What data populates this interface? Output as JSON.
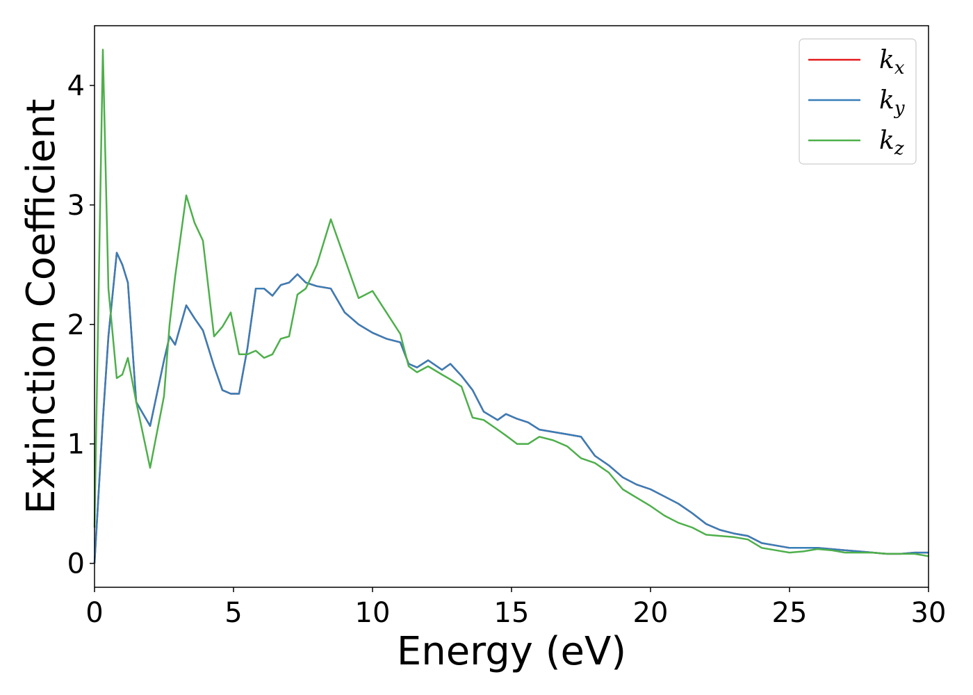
{
  "chart_data": {
    "type": "line",
    "title": "",
    "xlabel": "Energy (eV)",
    "ylabel": "Extinction Coefficient",
    "xlim": [
      0,
      30
    ],
    "ylim": [
      -0.2,
      4.5
    ],
    "xticks": [
      0,
      5,
      10,
      15,
      20,
      25,
      30
    ],
    "xtick_labels": [
      "0",
      "5",
      "10",
      "15",
      "20",
      "25",
      "30"
    ],
    "yticks": [
      0,
      1,
      2,
      3,
      4
    ],
    "ytick_labels": [
      "0",
      "1",
      "2",
      "3",
      "4"
    ],
    "grid": false,
    "legend_position": "top-right",
    "x": [
      0,
      0.3,
      0.5,
      0.8,
      1.0,
      1.2,
      1.5,
      2.0,
      2.5,
      2.7,
      2.9,
      3.3,
      3.6,
      3.9,
      4.3,
      4.6,
      4.9,
      5.2,
      5.5,
      5.8,
      6.1,
      6.4,
      6.7,
      7.0,
      7.3,
      7.6,
      8.0,
      8.5,
      9.0,
      9.5,
      10.0,
      10.5,
      11.0,
      11.3,
      11.6,
      12.0,
      12.5,
      12.8,
      13.2,
      13.6,
      14.0,
      14.5,
      14.8,
      15.2,
      15.6,
      16.0,
      16.5,
      17.0,
      17.5,
      18.0,
      18.5,
      19.0,
      19.5,
      20.0,
      20.5,
      21.0,
      21.5,
      22.0,
      22.5,
      23.0,
      23.5,
      24.0,
      24.5,
      25.0,
      25.5,
      26.0,
      26.5,
      27.0,
      27.5,
      28.0,
      28.5,
      29.0,
      29.5,
      30.0
    ],
    "series": [
      {
        "name": "x",
        "color": "#e41a1c",
        "values": [
          0,
          1.2,
          1.9,
          2.6,
          2.5,
          2.35,
          1.35,
          1.15,
          1.7,
          1.9,
          1.83,
          2.16,
          2.05,
          1.95,
          1.65,
          1.45,
          1.42,
          1.42,
          1.8,
          2.3,
          2.3,
          2.24,
          2.33,
          2.35,
          2.42,
          2.35,
          2.32,
          2.3,
          2.1,
          2.0,
          1.93,
          1.88,
          1.85,
          1.67,
          1.64,
          1.7,
          1.62,
          1.67,
          1.57,
          1.45,
          1.27,
          1.2,
          1.25,
          1.21,
          1.18,
          1.12,
          1.1,
          1.08,
          1.06,
          0.9,
          0.82,
          0.72,
          0.66,
          0.62,
          0.56,
          0.5,
          0.42,
          0.33,
          0.28,
          0.25,
          0.23,
          0.17,
          0.15,
          0.13,
          0.13,
          0.13,
          0.12,
          0.11,
          0.1,
          0.09,
          0.08,
          0.08,
          0.09,
          0.09
        ]
      },
      {
        "name": "y",
        "color": "#377eb8",
        "values": [
          0,
          1.2,
          1.9,
          2.6,
          2.5,
          2.35,
          1.35,
          1.15,
          1.7,
          1.9,
          1.83,
          2.16,
          2.05,
          1.95,
          1.65,
          1.45,
          1.42,
          1.42,
          1.8,
          2.3,
          2.3,
          2.24,
          2.33,
          2.35,
          2.42,
          2.35,
          2.32,
          2.3,
          2.1,
          2.0,
          1.93,
          1.88,
          1.85,
          1.67,
          1.64,
          1.7,
          1.62,
          1.67,
          1.57,
          1.45,
          1.27,
          1.2,
          1.25,
          1.21,
          1.18,
          1.12,
          1.1,
          1.08,
          1.06,
          0.9,
          0.82,
          0.72,
          0.66,
          0.62,
          0.56,
          0.5,
          0.42,
          0.33,
          0.28,
          0.25,
          0.23,
          0.17,
          0.15,
          0.13,
          0.13,
          0.13,
          0.12,
          0.11,
          0.1,
          0.09,
          0.08,
          0.08,
          0.09,
          0.09
        ]
      },
      {
        "name": "z",
        "color": "#4daf4a",
        "values": [
          0.3,
          4.3,
          2.3,
          1.55,
          1.58,
          1.72,
          1.35,
          0.8,
          1.4,
          2.0,
          2.4,
          3.08,
          2.85,
          2.7,
          1.9,
          1.98,
          2.1,
          1.75,
          1.75,
          1.78,
          1.72,
          1.75,
          1.88,
          1.9,
          2.25,
          2.3,
          2.5,
          2.88,
          2.55,
          2.22,
          2.28,
          2.1,
          1.92,
          1.65,
          1.6,
          1.65,
          1.58,
          1.54,
          1.48,
          1.22,
          1.2,
          1.12,
          1.07,
          1.0,
          1.0,
          1.06,
          1.03,
          0.98,
          0.88,
          0.84,
          0.76,
          0.62,
          0.55,
          0.48,
          0.4,
          0.34,
          0.3,
          0.24,
          0.23,
          0.22,
          0.2,
          0.13,
          0.11,
          0.09,
          0.1,
          0.12,
          0.11,
          0.09,
          0.09,
          0.09,
          0.08,
          0.08,
          0.08,
          0.06
        ]
      }
    ]
  }
}
